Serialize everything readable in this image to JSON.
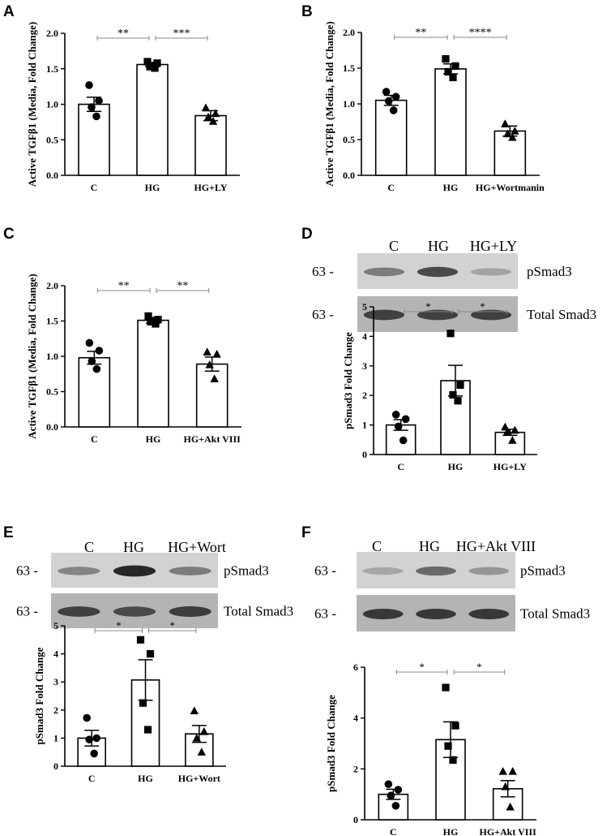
{
  "panels": [
    {
      "letter": "A",
      "chart_data": {
        "type": "bar",
        "categories": [
          "C",
          "HG",
          "HG+LY"
        ],
        "values": [
          1.0,
          1.56,
          0.84
        ],
        "sem": [
          0.1,
          0.03,
          0.07
        ],
        "points": [
          [
            1.27,
            1.05,
            0.96,
            0.83
          ],
          [
            1.6,
            1.58,
            1.53,
            1.51
          ],
          [
            0.95,
            0.87,
            0.82,
            0.76
          ]
        ],
        "marker": [
          "circle",
          "square",
          "triangle"
        ],
        "ylabel": "Active TGFβ1 (Media, Fold Change)",
        "ylim": [
          0,
          2.0
        ],
        "yticks": [
          "0.0",
          "0.5",
          "1.0",
          "1.5",
          "2.0"
        ],
        "significance": [
          {
            "from": 0,
            "to": 1,
            "label": "**"
          },
          {
            "from": 1,
            "to": 2,
            "label": "***"
          }
        ]
      }
    },
    {
      "letter": "B",
      "chart_data": {
        "type": "bar",
        "categories": [
          "C",
          "HG",
          "HG+Wortmanin"
        ],
        "values": [
          1.05,
          1.49,
          0.62
        ],
        "sem": [
          0.07,
          0.07,
          0.07
        ],
        "points": [
          [
            1.17,
            1.1,
            1.04,
            0.91
          ],
          [
            1.63,
            1.53,
            1.45,
            1.37
          ],
          [
            0.72,
            0.62,
            0.58,
            0.53
          ]
        ],
        "marker": [
          "circle",
          "square",
          "triangle"
        ],
        "ylabel": "Active TGFβ1 (Media, Fold Change)",
        "ylim": [
          0,
          2.0
        ],
        "yticks": [
          "0.0",
          "0.5",
          "1.0",
          "1.5",
          "2.0"
        ],
        "significance": [
          {
            "from": 0,
            "to": 1,
            "label": "**"
          },
          {
            "from": 1,
            "to": 2,
            "label": "****"
          }
        ]
      }
    },
    {
      "letter": "C",
      "chart_data": {
        "type": "bar",
        "categories": [
          "C",
          "HG",
          "HG+Akt VIII"
        ],
        "values": [
          0.98,
          1.51,
          0.89
        ],
        "sem": [
          0.09,
          0.04,
          0.1
        ],
        "points": [
          [
            1.19,
            1.08,
            0.93,
            0.82
          ],
          [
            1.57,
            1.52,
            1.49,
            1.46
          ],
          [
            1.06,
            1.03,
            0.88,
            0.68
          ]
        ],
        "marker": [
          "circle",
          "square",
          "triangle"
        ],
        "ylabel": "Active TGFβ1 (Media, Fold Change)",
        "ylim": [
          0,
          2.0
        ],
        "yticks": [
          "0.0",
          "0.5",
          "1.0",
          "1.5",
          "2.0"
        ],
        "significance": [
          {
            "from": 0,
            "to": 1,
            "label": "**"
          },
          {
            "from": 1,
            "to": 2,
            "label": "**"
          }
        ]
      }
    },
    {
      "letter": "D",
      "blot": {
        "lanes": [
          "C",
          "HG",
          "HG+LY"
        ],
        "marker": "63 -",
        "bands": [
          "pSmad3",
          "Total Smad3"
        ],
        "pSmad3_intensity": [
          0.45,
          0.75,
          0.22
        ],
        "total_intensity": [
          0.8,
          0.8,
          0.8
        ]
      },
      "chart_data": {
        "type": "bar",
        "categories": [
          "C",
          "HG",
          "HG+LY"
        ],
        "values": [
          1.0,
          2.5,
          0.75
        ],
        "sem": [
          0.18,
          0.52,
          0.1
        ],
        "points": [
          [
            1.35,
            1.2,
            0.95,
            0.48
          ],
          [
            4.1,
            2.35,
            2.02,
            1.82
          ],
          [
            0.93,
            0.82,
            0.78,
            0.48
          ]
        ],
        "marker": [
          "circle",
          "square",
          "triangle"
        ],
        "ylabel": "pSmad3 Fold Change",
        "ylim": [
          0,
          5
        ],
        "yticks": [
          "0",
          "1",
          "2",
          "3",
          "4",
          "5"
        ],
        "significance": [
          {
            "from": 0,
            "to": 1,
            "label": "*"
          },
          {
            "from": 1,
            "to": 2,
            "label": "*"
          }
        ]
      }
    },
    {
      "letter": "E",
      "blot": {
        "lanes": [
          "C",
          "HG",
          "HG+Wort"
        ],
        "marker": "63 -",
        "bands": [
          "pSmad3",
          "Total Smad3"
        ],
        "pSmad3_intensity": [
          0.4,
          0.95,
          0.45
        ],
        "total_intensity": [
          0.8,
          0.75,
          0.82
        ]
      },
      "chart_data": {
        "type": "bar",
        "categories": [
          "C",
          "HG",
          "HG+Wort"
        ],
        "values": [
          1.0,
          3.07,
          1.15
        ],
        "sem": [
          0.28,
          0.72,
          0.3
        ],
        "points": [
          [
            1.72,
            1.0,
            0.95,
            0.45
          ],
          [
            4.5,
            4.0,
            2.25,
            1.3
          ],
          [
            1.97,
            1.23,
            1.0,
            0.5
          ]
        ],
        "marker": [
          "circle",
          "square",
          "triangle"
        ],
        "ylabel": "pSmad3 Fold  Change",
        "ylim": [
          0,
          5
        ],
        "yticks": [
          "0",
          "1",
          "2",
          "3",
          "4",
          "5"
        ],
        "significance": [
          {
            "from": 0,
            "to": 1,
            "label": "*"
          },
          {
            "from": 1,
            "to": 2,
            "label": "*"
          }
        ]
      }
    },
    {
      "letter": "F",
      "blot": {
        "lanes": [
          "C",
          "HG",
          "HG+Akt VIII"
        ],
        "marker": "63 -",
        "bands": [
          "pSmad3",
          "Total Smad3"
        ],
        "pSmad3_intensity": [
          0.2,
          0.55,
          0.3
        ],
        "total_intensity": [
          0.85,
          0.85,
          0.85
        ]
      },
      "chart_data": {
        "type": "bar",
        "categories": [
          "C",
          "HG",
          "HG+Akt VIII"
        ],
        "values": [
          1.0,
          3.15,
          1.22
        ],
        "sem": [
          0.2,
          0.7,
          0.32
        ],
        "points": [
          [
            1.4,
            1.18,
            0.95,
            0.55
          ],
          [
            5.2,
            3.7,
            2.9,
            2.35
          ],
          [
            1.9,
            1.9,
            1.3,
            0.5
          ]
        ],
        "marker": [
          "circle",
          "square",
          "triangle"
        ],
        "ylabel": "pSmad3 Fold Change",
        "ylim": [
          0,
          6
        ],
        "yticks": [
          "0",
          "2",
          "4",
          "6"
        ],
        "significance": [
          {
            "from": 0,
            "to": 1,
            "label": "*"
          },
          {
            "from": 1,
            "to": 2,
            "label": "*"
          }
        ]
      }
    }
  ]
}
